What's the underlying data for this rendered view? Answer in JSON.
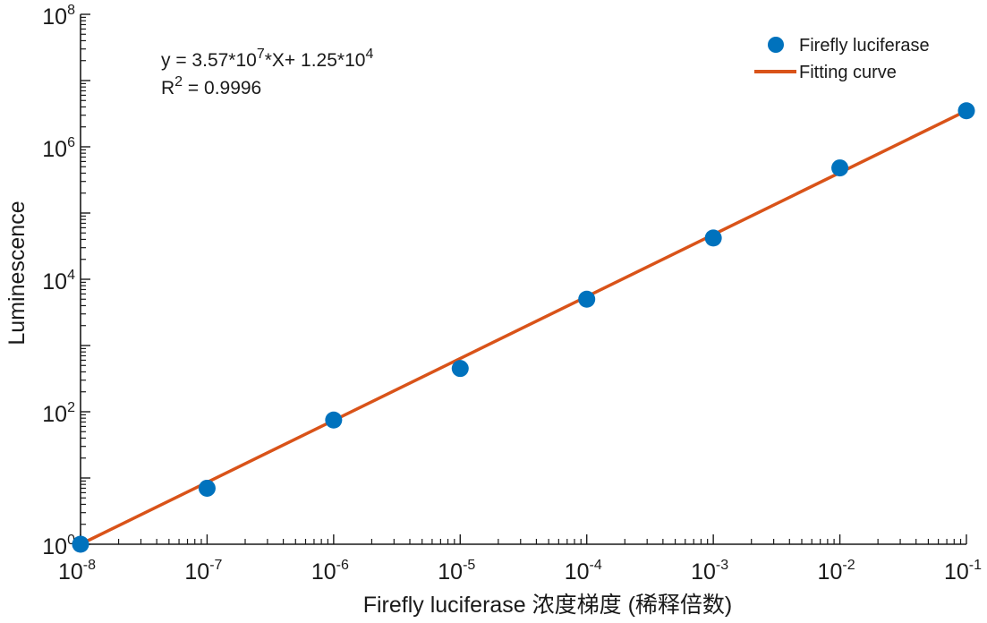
{
  "chart_data": {
    "type": "scatter",
    "xscale": "log",
    "yscale": "log",
    "xlim": [
      1e-08,
      0.1
    ],
    "ylim": [
      1,
      100000000.0
    ],
    "xticks": [
      {
        "base": "10",
        "exp": "-8"
      },
      {
        "base": "10",
        "exp": "-7"
      },
      {
        "base": "10",
        "exp": "-6"
      },
      {
        "base": "10",
        "exp": "-5"
      },
      {
        "base": "10",
        "exp": "-4"
      },
      {
        "base": "10",
        "exp": "-3"
      },
      {
        "base": "10",
        "exp": "-2"
      },
      {
        "base": "10",
        "exp": "-1"
      }
    ],
    "yticks": [
      {
        "base": "10",
        "exp": "0"
      },
      {
        "base": "10",
        "exp": "2"
      },
      {
        "base": "10",
        "exp": "4"
      },
      {
        "base": "10",
        "exp": "6"
      },
      {
        "base": "10",
        "exp": "8"
      }
    ],
    "xlabel": "Firefly luciferase 浓度梯度 (稀释倍数)",
    "ylabel": "Luminescence",
    "series": [
      {
        "name": "Firefly luciferase",
        "kind": "scatter",
        "color": "#0072BD",
        "x": [
          1e-08,
          1e-07,
          1e-06,
          1e-05,
          0.0001,
          0.001,
          0.01,
          0.1
        ],
        "y": [
          1,
          7,
          75,
          450,
          5000,
          42000,
          480000,
          3500000
        ]
      },
      {
        "name": "Fitting curve",
        "kind": "line",
        "color": "#D95319",
        "x": [
          1e-08,
          0.1
        ],
        "y": [
          1,
          3500000
        ]
      }
    ],
    "legend_position": "top-right",
    "annotation": {
      "line1_prefix": "y = 3.57*10",
      "line1_exp1": "7",
      "line1_mid": "*X+ 1.25*10",
      "line1_exp2": "4",
      "line2_prefix": "R",
      "line2_exp": "2",
      "line2_suffix": " = 0.9996"
    }
  }
}
